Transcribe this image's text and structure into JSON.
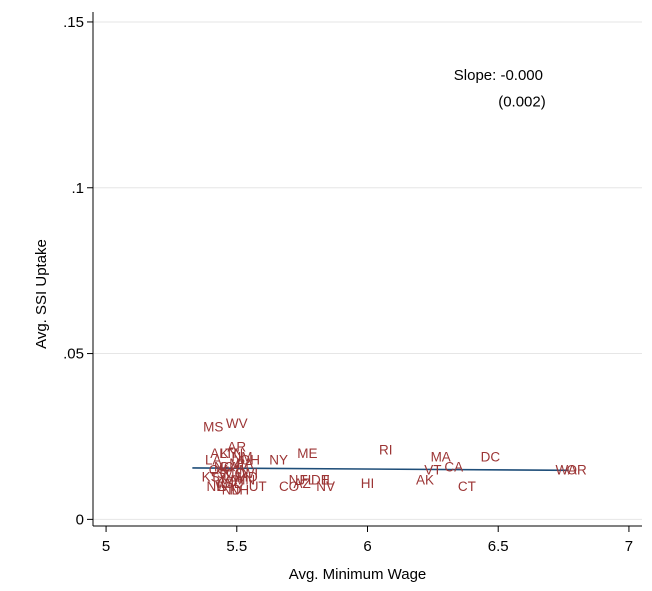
{
  "chart_data": {
    "type": "scatter",
    "title": "",
    "xlabel": "Avg. Minimum Wage",
    "ylabel": "Avg. SSI Uptake",
    "xlim": [
      4.95,
      7.05
    ],
    "ylim": [
      -0.002,
      0.153
    ],
    "x_ticks": [
      5,
      5.5,
      6,
      6.5,
      7
    ],
    "x_tick_labels": [
      "5",
      "5.5",
      "6",
      "6.5",
      "7"
    ],
    "y_ticks": [
      0,
      0.05,
      0.1,
      0.15
    ],
    "y_tick_labels": [
      "0",
      ".05",
      ".1",
      ".15"
    ],
    "grid": "horizontal",
    "marker_color": "#9c3535",
    "fit_line_color": "#1f4e79",
    "annotation": {
      "slope_text": "Slope: -0.000",
      "se_text": "(0.002)",
      "slope_x": 6.33,
      "slope_y": 0.1325,
      "se_x": 6.5,
      "se_y": 0.1245
    },
    "fit_line": {
      "x": [
        5.33,
        6.77
      ],
      "y": [
        0.0155,
        0.0148
      ]
    },
    "points": [
      {
        "label": "MS",
        "x": 5.41,
        "y": 0.028
      },
      {
        "label": "WV",
        "x": 5.5,
        "y": 0.029
      },
      {
        "label": "AR",
        "x": 5.5,
        "y": 0.022
      },
      {
        "label": "AL",
        "x": 5.43,
        "y": 0.02
      },
      {
        "label": "KY",
        "x": 5.47,
        "y": 0.02
      },
      {
        "label": "TN",
        "x": 5.49,
        "y": 0.02
      },
      {
        "label": "NM",
        "x": 5.52,
        "y": 0.019
      },
      {
        "label": "OH",
        "x": 5.55,
        "y": 0.018
      },
      {
        "label": "LA",
        "x": 5.41,
        "y": 0.018
      },
      {
        "label": "MI",
        "x": 5.5,
        "y": 0.017
      },
      {
        "label": "PA",
        "x": 5.53,
        "y": 0.017
      },
      {
        "label": "NC",
        "x": 5.45,
        "y": 0.016
      },
      {
        "label": "GA",
        "x": 5.47,
        "y": 0.016
      },
      {
        "label": "OK",
        "x": 5.43,
        "y": 0.015
      },
      {
        "label": "SC",
        "x": 5.46,
        "y": 0.014
      },
      {
        "label": "MO",
        "x": 5.49,
        "y": 0.014
      },
      {
        "label": "IN",
        "x": 5.52,
        "y": 0.015
      },
      {
        "label": "WI",
        "x": 5.55,
        "y": 0.014
      },
      {
        "label": "TX",
        "x": 5.43,
        "y": 0.013
      },
      {
        "label": "KS",
        "x": 5.4,
        "y": 0.013
      },
      {
        "label": "VA",
        "x": 5.47,
        "y": 0.012
      },
      {
        "label": "IA",
        "x": 5.5,
        "y": 0.012
      },
      {
        "label": "MN",
        "x": 5.53,
        "y": 0.012
      },
      {
        "label": "ID",
        "x": 5.45,
        "y": 0.011
      },
      {
        "label": "SD",
        "x": 5.49,
        "y": 0.011
      },
      {
        "label": "NE",
        "x": 5.42,
        "y": 0.01
      },
      {
        "label": "ND",
        "x": 5.48,
        "y": 0.009
      },
      {
        "label": "WY",
        "x": 5.46,
        "y": 0.01
      },
      {
        "label": "UT",
        "x": 5.58,
        "y": 0.01
      },
      {
        "label": "NH",
        "x": 5.51,
        "y": 0.009
      },
      {
        "label": "MD",
        "x": 5.54,
        "y": 0.013
      },
      {
        "label": "NY",
        "x": 5.66,
        "y": 0.018
      },
      {
        "label": "ME",
        "x": 5.77,
        "y": 0.02
      },
      {
        "label": "RI",
        "x": 6.07,
        "y": 0.021
      },
      {
        "label": "NJ",
        "x": 5.73,
        "y": 0.012
      },
      {
        "label": "FL",
        "x": 5.77,
        "y": 0.012
      },
      {
        "label": "CO",
        "x": 5.7,
        "y": 0.01
      },
      {
        "label": "AZ",
        "x": 5.75,
        "y": 0.011
      },
      {
        "label": "DE",
        "x": 5.82,
        "y": 0.012
      },
      {
        "label": "IL",
        "x": 5.85,
        "y": 0.012
      },
      {
        "label": "NV",
        "x": 5.84,
        "y": 0.01
      },
      {
        "label": "HI",
        "x": 6.0,
        "y": 0.011
      },
      {
        "label": "MA",
        "x": 6.28,
        "y": 0.019
      },
      {
        "label": "VT",
        "x": 6.25,
        "y": 0.015
      },
      {
        "label": "CA",
        "x": 6.33,
        "y": 0.016
      },
      {
        "label": "AK",
        "x": 6.22,
        "y": 0.012
      },
      {
        "label": "CT",
        "x": 6.38,
        "y": 0.01
      },
      {
        "label": "DC",
        "x": 6.47,
        "y": 0.019
      },
      {
        "label": "WA",
        "x": 6.76,
        "y": 0.015
      },
      {
        "label": "OR",
        "x": 6.8,
        "y": 0.015
      }
    ]
  }
}
